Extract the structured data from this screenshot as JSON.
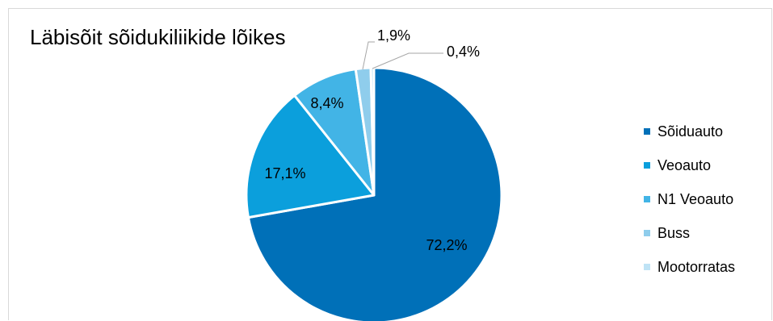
{
  "chart_data": {
    "type": "pie",
    "title": "Läbisõit sõidukiliikide lõikes",
    "categories": [
      "Sõiduauto",
      "Veoauto",
      "N1 Veoauto",
      "Buss",
      "Mootorratas"
    ],
    "values": [
      72.2,
      17.1,
      8.4,
      1.9,
      0.4
    ],
    "data_labels": [
      "72,2%",
      "17,1%",
      "8,4%",
      "1,9%",
      "0,4%"
    ],
    "colors": [
      "#0070b8",
      "#0b9fdc",
      "#42b4e6",
      "#8fcdec",
      "#bfe3f5"
    ],
    "legend_position": "right"
  }
}
